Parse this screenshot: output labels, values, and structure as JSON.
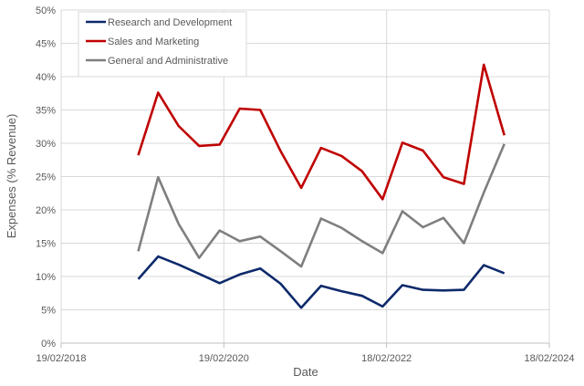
{
  "chart_data": {
    "type": "line",
    "xlabel": "Date",
    "ylabel": "Expenses (% Revenue)",
    "x_ticks": [
      "19/02/2018",
      "19/02/2020",
      "18/02/2022",
      "18/02/2024"
    ],
    "xlim": [
      "2018-02-19",
      "2024-02-18"
    ],
    "ylim": [
      0,
      50
    ],
    "y_ticks": [
      "0%",
      "5%",
      "10%",
      "15%",
      "20%",
      "25%",
      "30%",
      "35%",
      "40%",
      "45%",
      "50%"
    ],
    "grid": true,
    "legend": "top-left",
    "x": [
      "2019-01-31",
      "2019-04-30",
      "2019-07-31",
      "2019-10-31",
      "2020-01-31",
      "2020-04-30",
      "2020-07-31",
      "2020-10-31",
      "2021-01-31",
      "2021-04-30",
      "2021-07-31",
      "2021-10-31",
      "2022-01-31",
      "2022-04-30",
      "2022-07-31",
      "2022-10-31",
      "2023-01-31",
      "2023-04-30",
      "2023-07-31"
    ],
    "series": [
      {
        "name": "Research and Development",
        "color": "#0d2a6b",
        "values": [
          9.6,
          13.0,
          11.8,
          10.4,
          9.0,
          10.3,
          11.2,
          8.9,
          5.3,
          8.6,
          7.8,
          7.1,
          5.5,
          8.7,
          8.0,
          7.9,
          8.0,
          11.7,
          10.5
        ]
      },
      {
        "name": "Sales and Marketing",
        "color": "#c00000",
        "values": [
          28.2,
          37.6,
          32.6,
          29.6,
          29.8,
          35.2,
          35.0,
          28.8,
          23.3,
          29.3,
          28.1,
          25.8,
          21.6,
          30.1,
          28.9,
          24.9,
          23.9,
          41.8,
          31.2
        ]
      },
      {
        "name": "General and Administrative",
        "color": "#7f7f7f",
        "values": [
          13.8,
          24.9,
          17.9,
          12.8,
          16.9,
          15.3,
          16.0,
          13.8,
          11.5,
          18.7,
          17.3,
          15.3,
          13.5,
          19.8,
          17.4,
          18.8,
          15.0,
          22.6,
          29.9
        ]
      }
    ]
  }
}
